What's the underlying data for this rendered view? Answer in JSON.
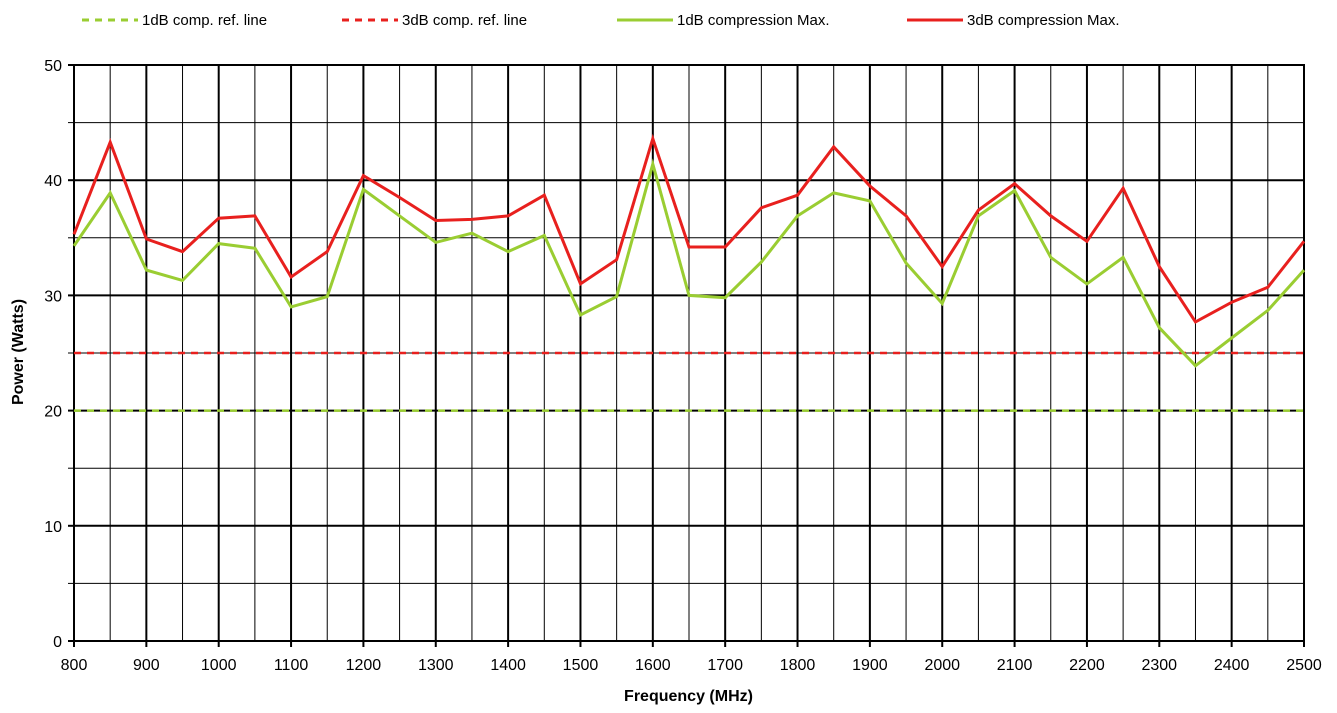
{
  "chart_data": {
    "type": "line",
    "xlabel": "Frequency  (MHz)",
    "ylabel": "Power (Watts)",
    "xlim": [
      800,
      2500
    ],
    "ylim": [
      0,
      50
    ],
    "x_ticks": [
      800,
      900,
      1000,
      1100,
      1200,
      1300,
      1400,
      1500,
      1600,
      1700,
      1800,
      1900,
      2000,
      2100,
      2200,
      2300,
      2400,
      2500
    ],
    "y_ticks": [
      0,
      10,
      20,
      30,
      40,
      50
    ],
    "grid": true,
    "legend_position": "top",
    "x": [
      800,
      850,
      900,
      950,
      1000,
      1050,
      1100,
      1150,
      1200,
      1250,
      1300,
      1350,
      1400,
      1450,
      1500,
      1550,
      1600,
      1650,
      1700,
      1750,
      1800,
      1850,
      1900,
      1950,
      2000,
      2050,
      2100,
      2150,
      2200,
      2250,
      2300,
      2350,
      2400,
      2450,
      2500
    ],
    "series": [
      {
        "name": "1dB comp. ref. line",
        "color": "#9acd32",
        "dash": true,
        "values": [
          20,
          20,
          20,
          20,
          20,
          20,
          20,
          20,
          20,
          20,
          20,
          20,
          20,
          20,
          20,
          20,
          20,
          20,
          20,
          20,
          20,
          20,
          20,
          20,
          20,
          20,
          20,
          20,
          20,
          20,
          20,
          20,
          20,
          20,
          20
        ]
      },
      {
        "name": "3dB comp. ref. line",
        "color": "#e8201e",
        "dash": true,
        "values": [
          25,
          25,
          25,
          25,
          25,
          25,
          25,
          25,
          25,
          25,
          25,
          25,
          25,
          25,
          25,
          25,
          25,
          25,
          25,
          25,
          25,
          25,
          25,
          25,
          25,
          25,
          25,
          25,
          25,
          25,
          25,
          25,
          25,
          25,
          25
        ]
      },
      {
        "name": "1dB compression Max.",
        "color": "#9acd32",
        "dash": false,
        "values": [
          34.3,
          38.9,
          32.2,
          31.3,
          34.5,
          34.1,
          29.0,
          29.9,
          39.2,
          36.9,
          34.6,
          35.4,
          33.8,
          35.2,
          28.3,
          29.9,
          41.4,
          30.0,
          29.8,
          32.9,
          36.9,
          38.9,
          38.2,
          32.8,
          29.3,
          36.9,
          39.1,
          33.3,
          31.0,
          33.3,
          27.2,
          23.9,
          26.3,
          28.7,
          32.2
        ]
      },
      {
        "name": "3dB compression Max.",
        "color": "#e8201e",
        "dash": false,
        "values": [
          35.3,
          43.3,
          34.9,
          33.8,
          36.7,
          36.9,
          31.6,
          33.8,
          40.4,
          38.5,
          36.5,
          36.6,
          36.9,
          38.7,
          31.0,
          33.1,
          43.6,
          34.2,
          34.2,
          37.6,
          38.7,
          42.9,
          39.5,
          36.9,
          32.5,
          37.4,
          39.7,
          36.9,
          34.7,
          39.3,
          32.5,
          27.7,
          29.4,
          30.7,
          34.7
        ]
      }
    ]
  }
}
